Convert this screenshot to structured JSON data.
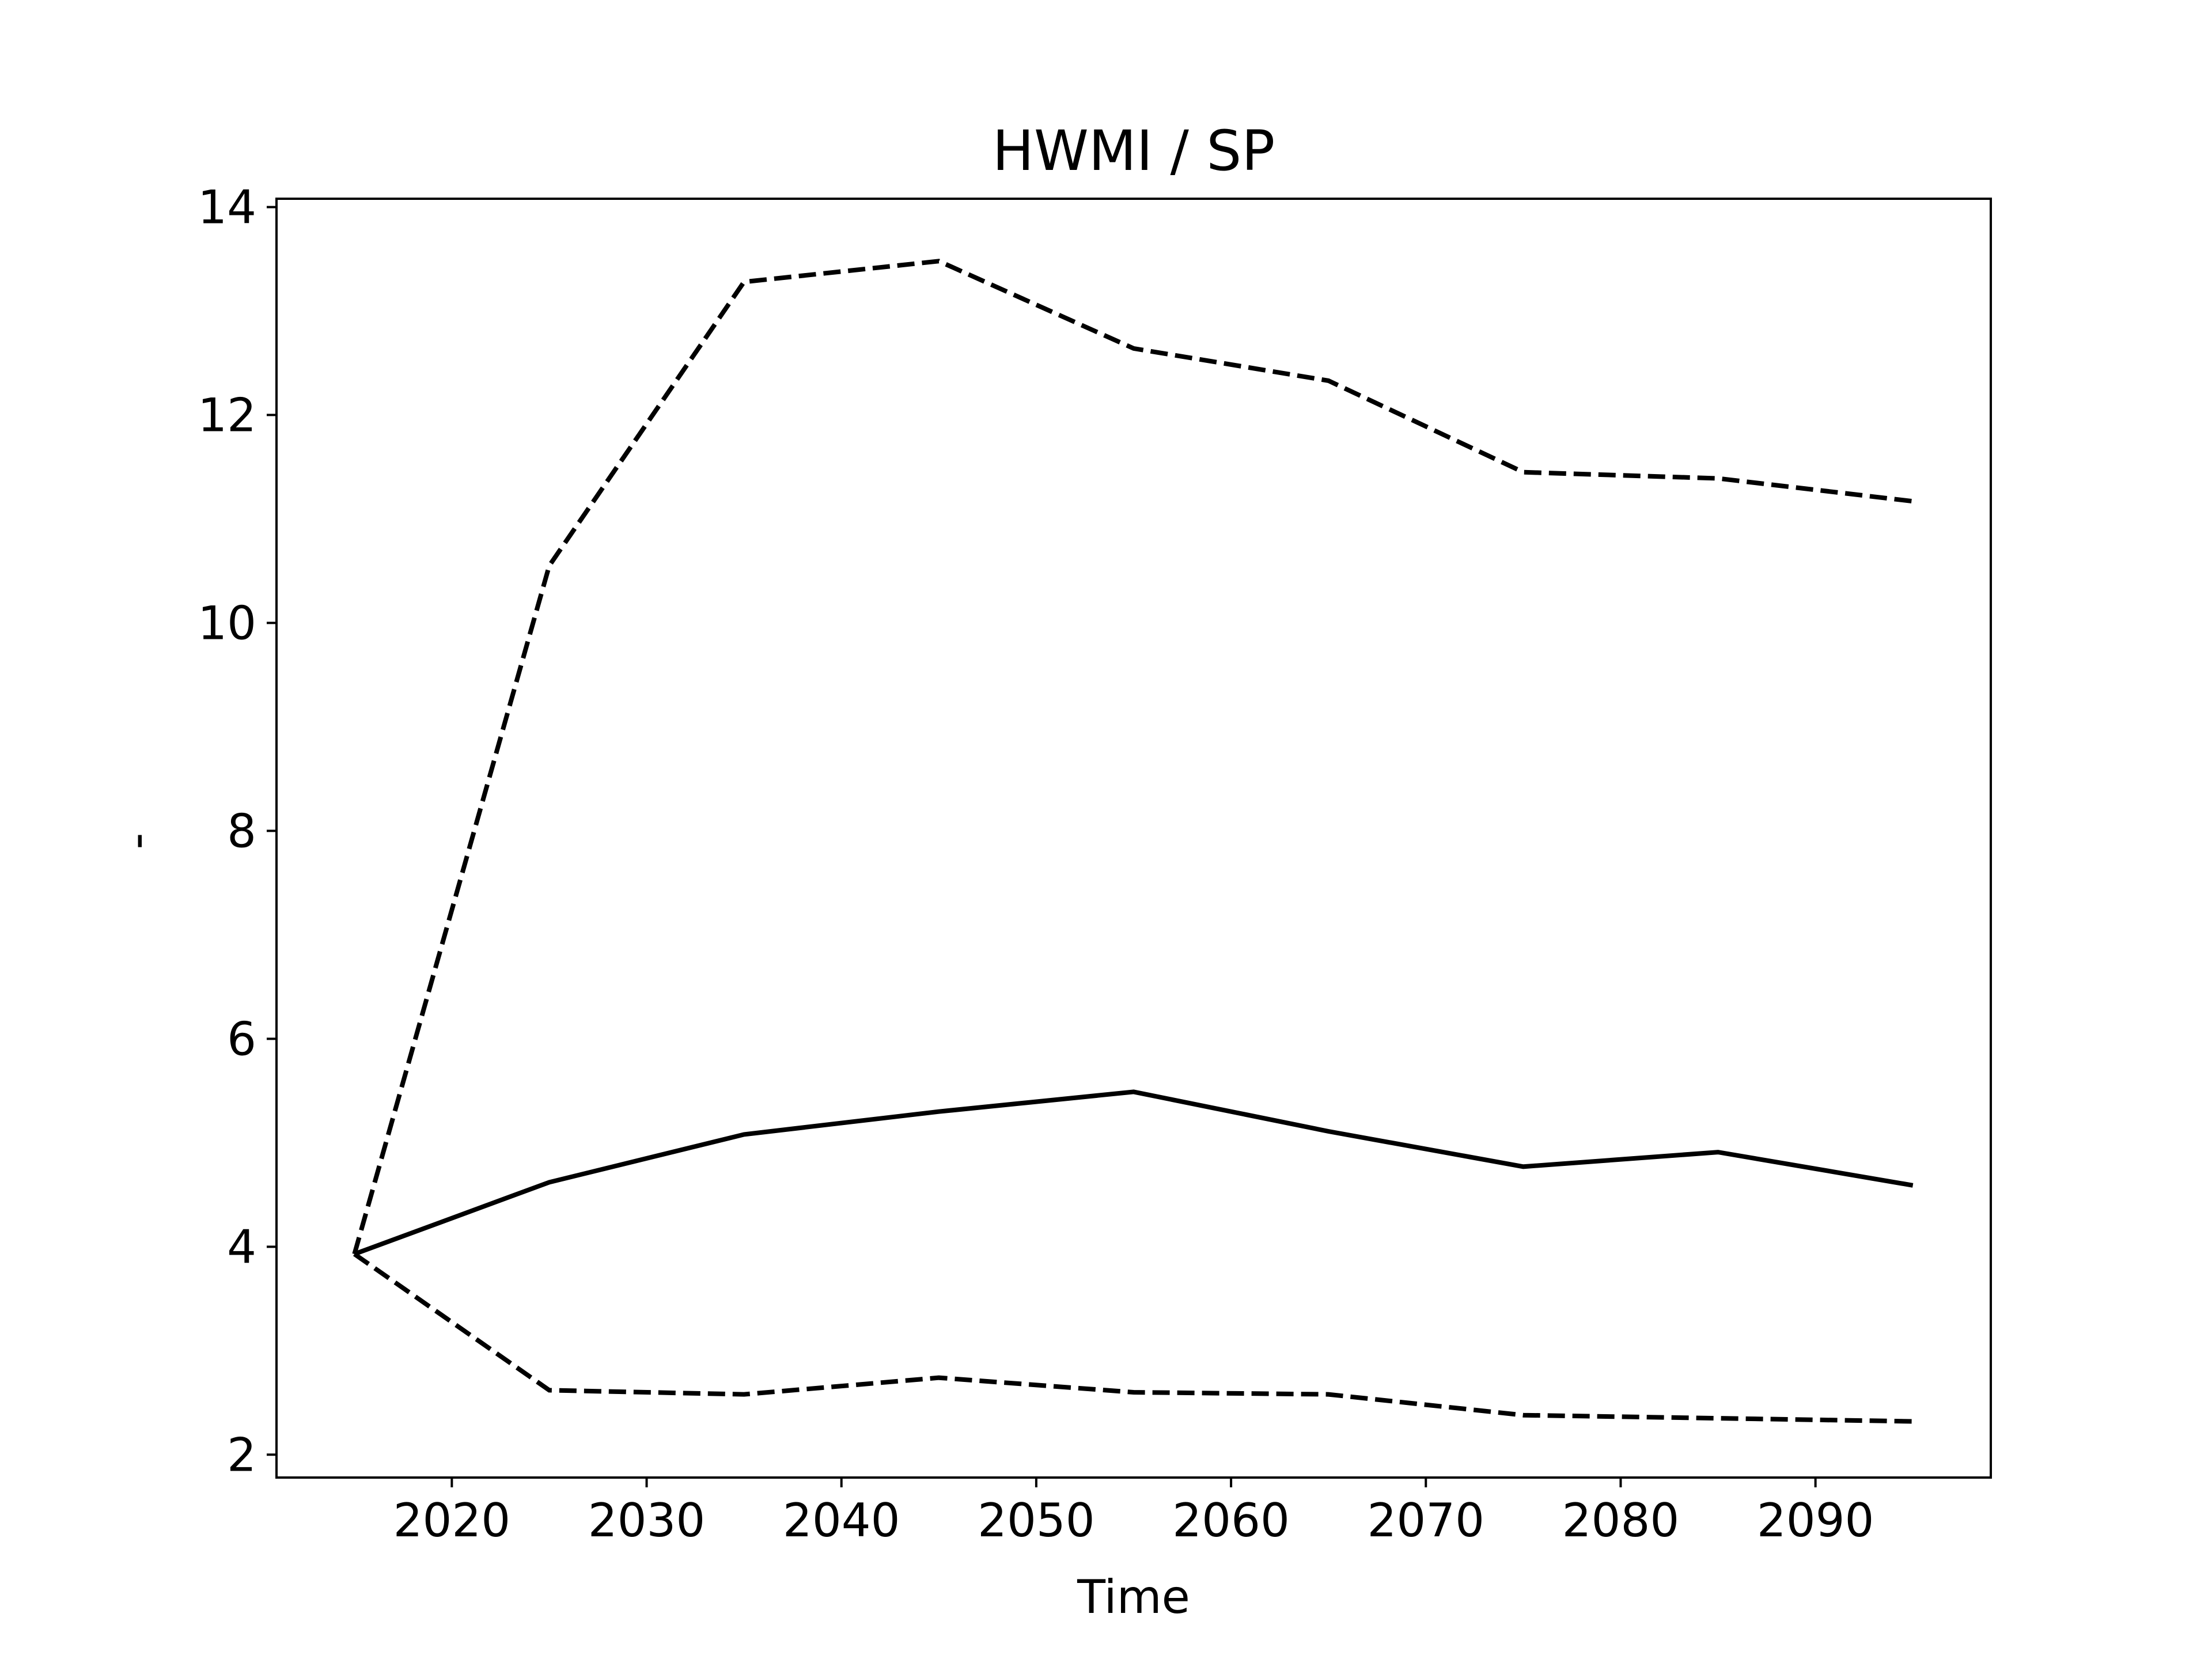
{
  "chart_data": {
    "type": "line",
    "title": "HWMI / SP",
    "xlabel": "Time",
    "ylabel": "-",
    "xlim": [
      2011,
      2099
    ],
    "ylim": [
      1.78,
      14.08
    ],
    "xticks": [
      2020,
      2030,
      2040,
      2050,
      2060,
      2070,
      2080,
      2090
    ],
    "yticks": [
      2,
      4,
      6,
      8,
      10,
      12,
      14
    ],
    "grid": false,
    "x": [
      2015,
      2025,
      2035,
      2045,
      2055,
      2065,
      2075,
      2085,
      2095
    ],
    "series": [
      {
        "style": "solid",
        "values": [
          3.93,
          4.62,
          5.08,
          5.3,
          5.49,
          5.11,
          4.77,
          4.91,
          4.59
        ]
      },
      {
        "style": "dashed",
        "values": [
          3.93,
          10.55,
          13.28,
          13.48,
          12.64,
          12.33,
          11.45,
          11.39,
          11.17
        ]
      },
      {
        "style": "dashed",
        "values": [
          3.93,
          2.62,
          2.58,
          2.74,
          2.6,
          2.58,
          2.38,
          2.35,
          2.32
        ]
      }
    ],
    "colors": {
      "line": "#000000",
      "axes": "#000000",
      "background": "#ffffff"
    }
  }
}
